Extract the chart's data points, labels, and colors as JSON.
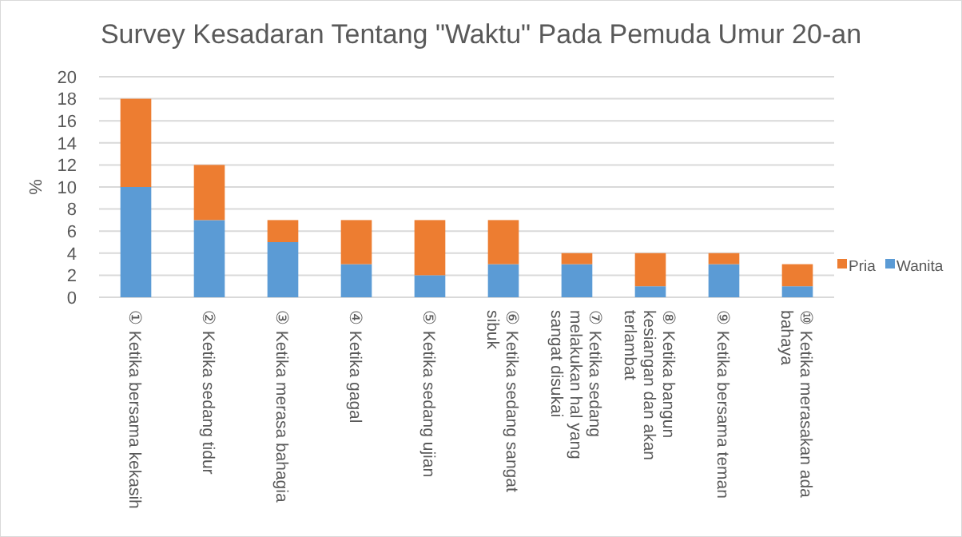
{
  "chart_data": {
    "type": "bar",
    "title": "Survey Kesadaran Tentang \"Waktu\" Pada Pemuda Umur 20-an",
    "ylabel": "%",
    "categories": [
      "① Ketika bersama kekasih",
      "② Ketika sedang tidur",
      "③ Ketika merasa bahagia",
      "④ Ketika gagal",
      "⑤ Ketika sedang ujian",
      "⑥ Ketika sedang sangat sibuk",
      "⑦ Ketika sedang melakukan hal yang sangat disukai",
      "⑧ Ketika bangun kesiangan dan akan terlambat",
      "⑨ Ketika bersama teman",
      "⑩ Ketika merasakan ada bahaya"
    ],
    "series": [
      {
        "name": "Wanita",
        "color": "#5b9bd5",
        "values": [
          10,
          7,
          5,
          3,
          2,
          3,
          3,
          1,
          3,
          1
        ]
      },
      {
        "name": "Pria",
        "color": "#ed7d31",
        "values": [
          8,
          5,
          2,
          4,
          5,
          4,
          1,
          3,
          1,
          2
        ]
      }
    ],
    "stacked": true,
    "ylim": [
      0,
      20
    ],
    "yticks": [
      0,
      2,
      4,
      6,
      8,
      10,
      12,
      14,
      16,
      18,
      20
    ],
    "grid": "y",
    "legend": "right"
  }
}
